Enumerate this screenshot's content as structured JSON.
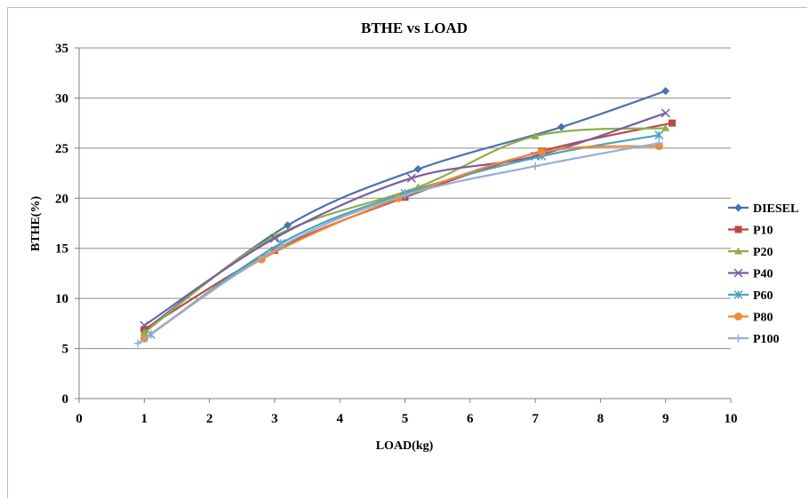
{
  "chart_data": {
    "type": "line",
    "title": "BTHE vs LOAD",
    "xlabel": "LOAD(kg)",
    "ylabel": "BTHE(%)",
    "xlim": [
      0,
      10
    ],
    "ylim": [
      0,
      35
    ],
    "xticks": [
      "0",
      "1",
      "2",
      "3",
      "4",
      "5",
      "6",
      "7",
      "8",
      "9",
      "10"
    ],
    "yticks": [
      "0",
      "5",
      "10",
      "15",
      "20",
      "25",
      "30",
      "35"
    ],
    "grid": "horizontal",
    "legend_position": "right",
    "series": [
      {
        "name": "DIESEL",
        "color": "#4a72b0",
        "marker": "diamond",
        "x": [
          1,
          3.2,
          5.2,
          7.4,
          9
        ],
        "y": [
          6.8,
          17.3,
          22.9,
          27.1,
          30.7
        ]
      },
      {
        "name": "P10",
        "color": "#b84a47",
        "marker": "square",
        "x": [
          1,
          3,
          5,
          7.1,
          9.1
        ],
        "y": [
          6.9,
          14.8,
          20.1,
          24.7,
          27.5
        ]
      },
      {
        "name": "P20",
        "color": "#8daf46",
        "marker": "triangle",
        "x": [
          1,
          3,
          5.2,
          7,
          9
        ],
        "y": [
          6.6,
          16.2,
          21.1,
          26.2,
          27
        ]
      },
      {
        "name": "P40",
        "color": "#7a5ca0",
        "marker": "x",
        "x": [
          1,
          3,
          5.1,
          7,
          9
        ],
        "y": [
          7.3,
          16,
          22,
          24.2,
          28.5
        ]
      },
      {
        "name": "P60",
        "color": "#4aa3b9",
        "marker": "star",
        "x": [
          1.1,
          3.1,
          5,
          7.1,
          8.9
        ],
        "y": [
          6.4,
          15.5,
          20.5,
          24.2,
          26.3
        ]
      },
      {
        "name": "P80",
        "color": "#ef8a33",
        "marker": "circle",
        "x": [
          1,
          2.8,
          4.9,
          7.1,
          8.9
        ],
        "y": [
          6,
          13.9,
          20,
          24.6,
          25.2
        ]
      },
      {
        "name": "P100",
        "color": "#94aed6",
        "marker": "plus",
        "x": [
          0.9,
          3.1,
          5,
          7,
          8.9
        ],
        "y": [
          5.5,
          15.2,
          20.3,
          23.2,
          25.5
        ]
      }
    ]
  }
}
